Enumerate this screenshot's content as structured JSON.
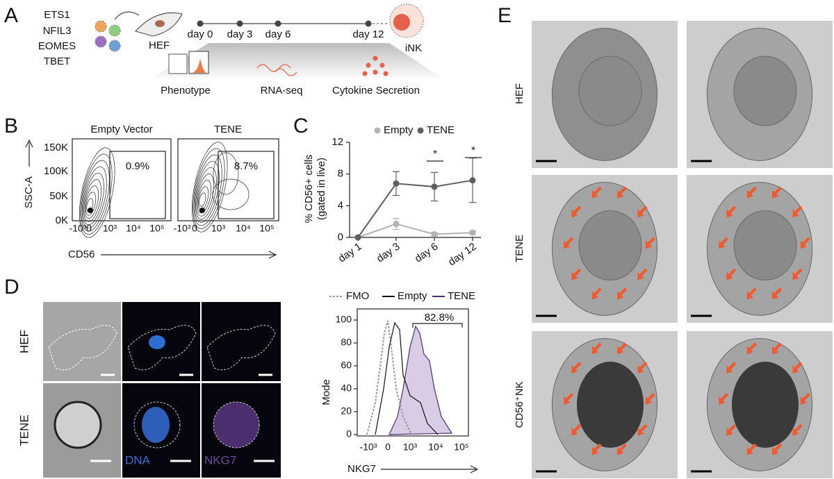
{
  "panels": {
    "a": {
      "label": "A",
      "factors": [
        "ETS1",
        "NFIL3",
        "EOMES",
        "TBET"
      ],
      "source": "HEF",
      "timeline": [
        "day 0",
        "day 3",
        "day 6",
        "day 12"
      ],
      "target": "iNK",
      "readouts": [
        "Phenotype",
        "RNA-seq",
        "Cytokine Secretion"
      ]
    },
    "b": {
      "label": "B",
      "plots": [
        {
          "title": "Empty Vector",
          "gate": "0.9%"
        },
        {
          "title": "TENE",
          "gate": "8.7%"
        }
      ],
      "y_axis": "SSC-A",
      "x_axis": "CD56",
      "yticks": [
        "150K",
        "100K",
        "50K",
        "0K"
      ],
      "xticks": [
        "-10³",
        "0",
        "10³",
        "10⁴",
        "10⁵"
      ]
    },
    "c": {
      "label": "C",
      "chart": {
        "type": "line",
        "y_label": [
          "% CD56+ cells",
          "(gated in live)"
        ],
        "categories": [
          "day 1",
          "day 3",
          "day 6",
          "day 12"
        ],
        "series": [
          {
            "name": "Empty",
            "color": "#b3b3b3",
            "values": [
              0,
              1.7,
              0.4,
              0.6
            ],
            "errors": [
              0,
              0.7,
              0.2,
              0.2
            ]
          },
          {
            "name": "TENE",
            "color": "#5f5f5f",
            "values": [
              0,
              6.8,
              6.4,
              7.2
            ],
            "errors": [
              0,
              1.5,
              1.8,
              2.8
            ]
          }
        ],
        "ylim": [
          0,
          12
        ],
        "yticks": [
          0,
          4,
          8,
          12
        ],
        "annotations": [
          "*",
          "*"
        ]
      }
    },
    "d": {
      "label": "D",
      "rows": [
        "HEF",
        "TENE"
      ],
      "channels": [
        "DNA",
        "NKG7"
      ],
      "histogram": {
        "legend": [
          "FMO",
          "Empty",
          "TENE"
        ],
        "gate": "82.8%",
        "y_label": "Mode",
        "x_label": "NKG7",
        "ylim": [
          0,
          100
        ],
        "yticks": [
          0,
          20,
          40,
          60,
          80,
          100
        ],
        "xticks": [
          "-10³",
          "0",
          "10³",
          "10⁴",
          "10⁵"
        ]
      }
    },
    "e": {
      "label": "E",
      "rows": [
        "HEF",
        "TENE",
        "CD56⁺NK"
      ]
    }
  }
}
